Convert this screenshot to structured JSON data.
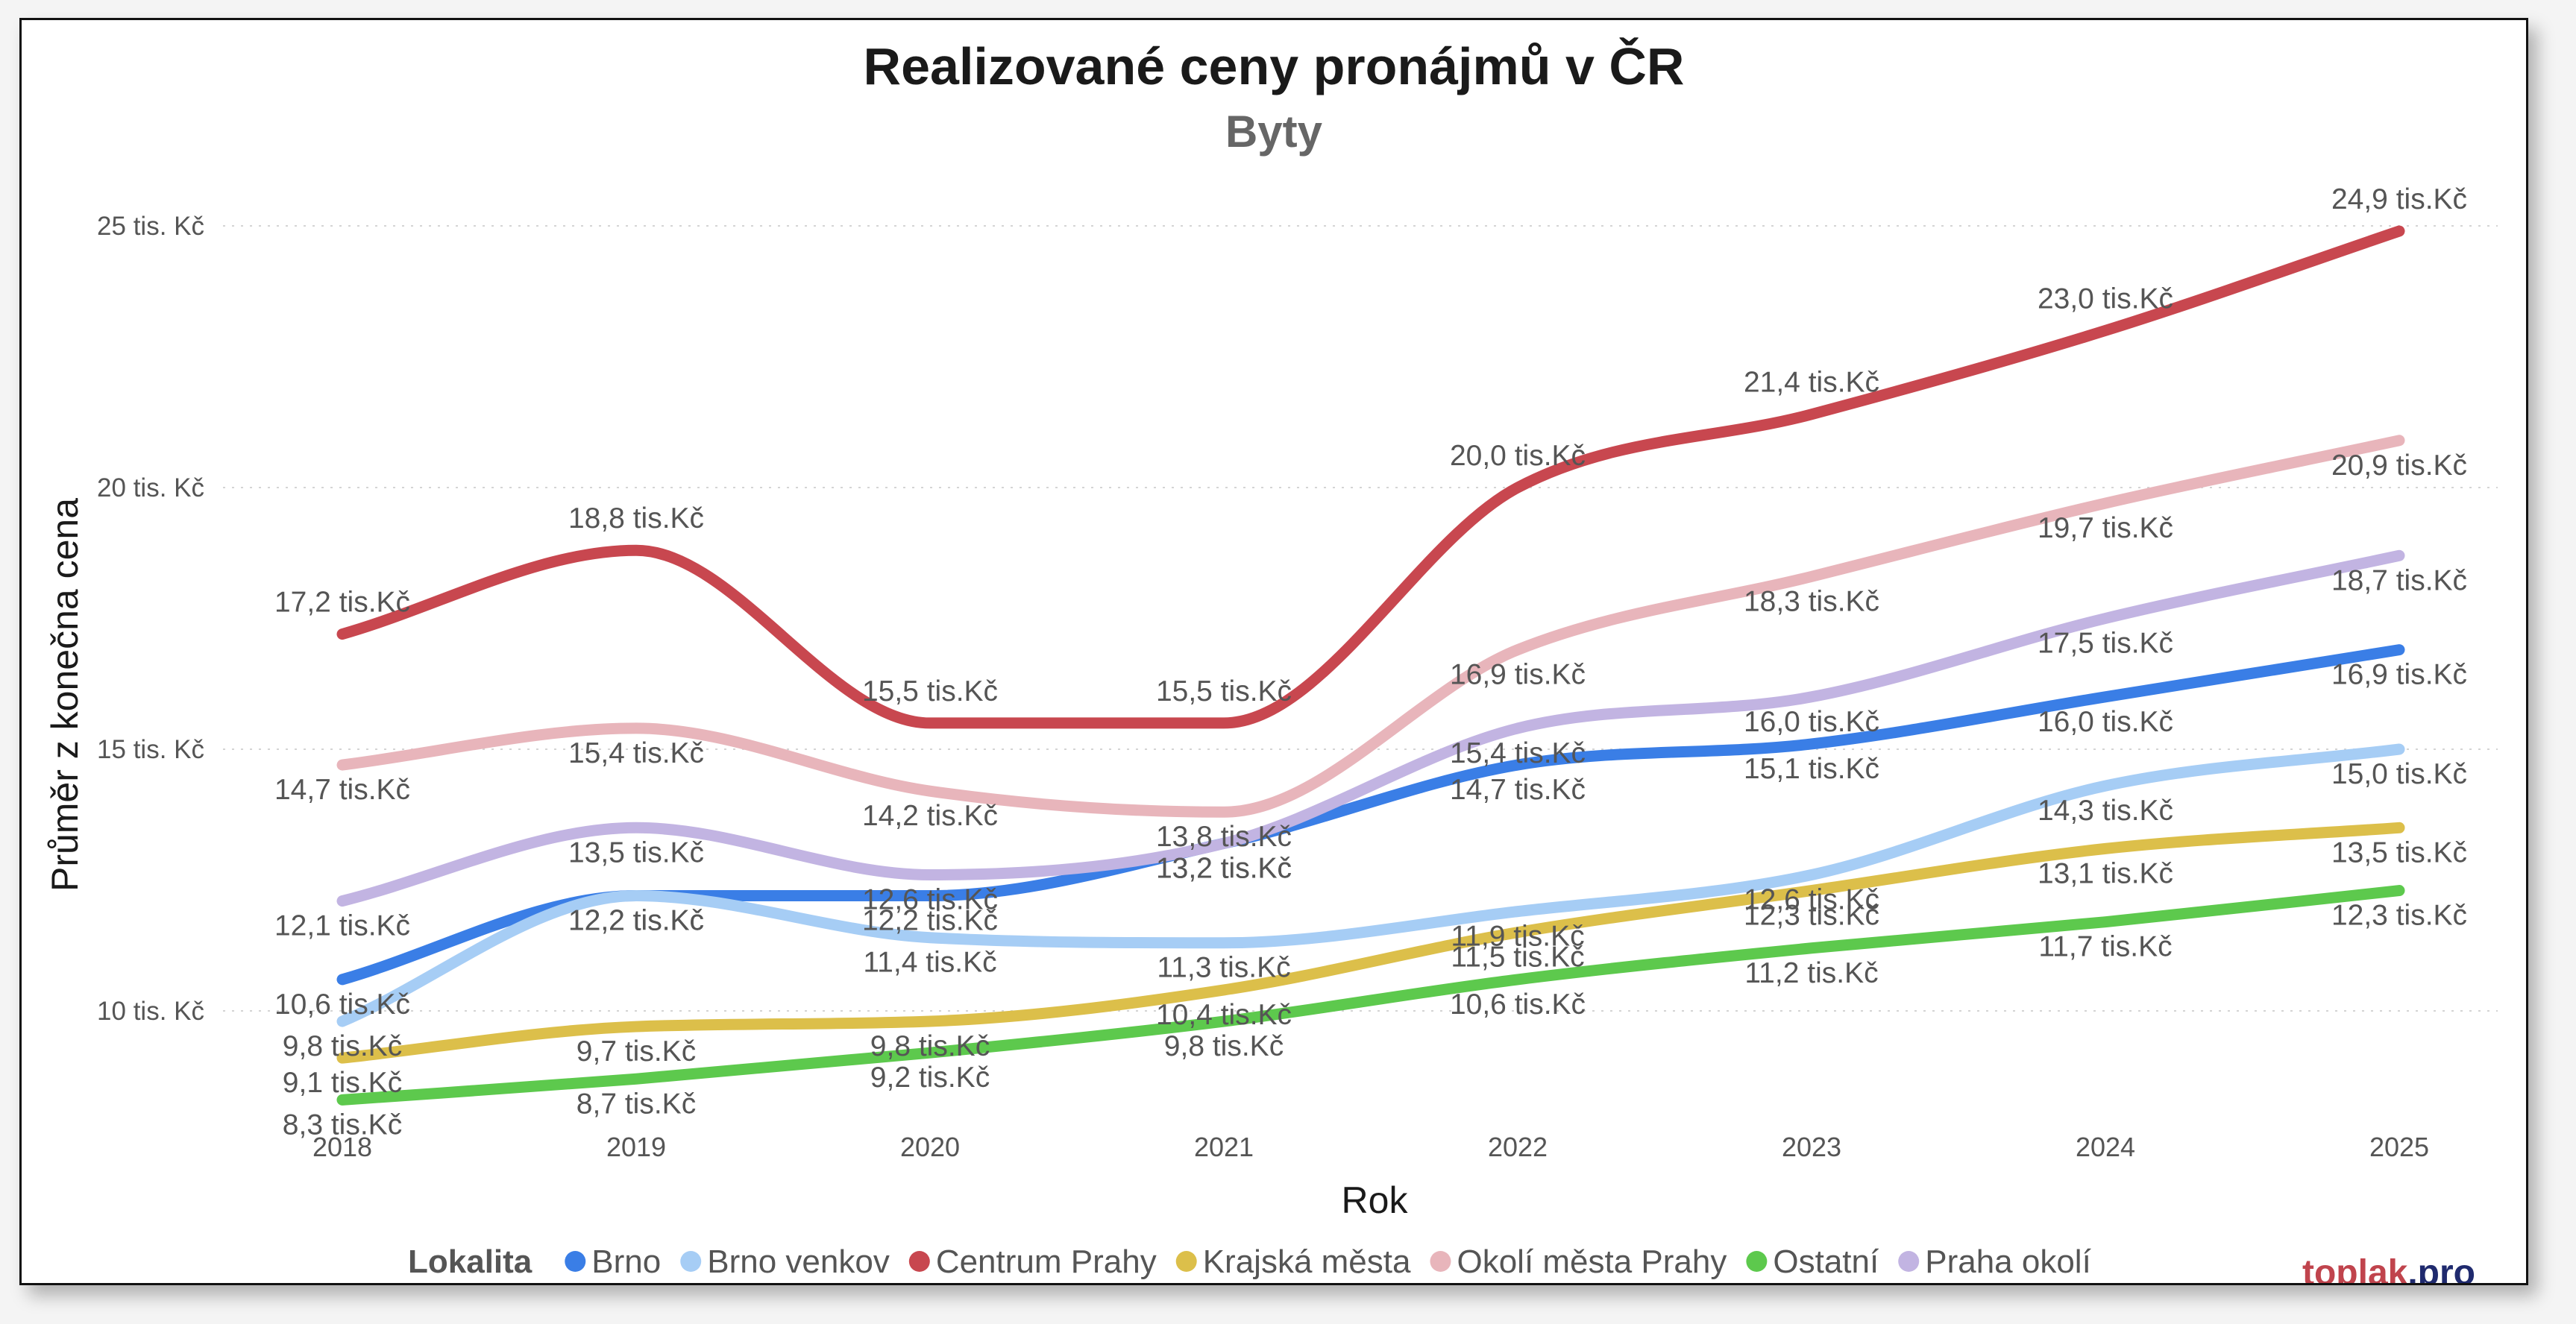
{
  "brand": {
    "part1": "toplak",
    "part2": ".pro",
    "color1": "#c0444d",
    "color2": "#1f2a6e"
  },
  "chart_data": {
    "type": "line",
    "title": "Realizované ceny pronájmů v ČR",
    "subtitle": "Byty",
    "xlabel": "Rok",
    "ylabel": "Průměr z konečna cena",
    "x": [
      "2018",
      "2019",
      "2020",
      "2021",
      "2022",
      "2023",
      "2024",
      "2025"
    ],
    "ylim": [
      7.4,
      26.5
    ],
    "yticks": [
      {
        "value": 10,
        "label": "10 tis. Kč"
      },
      {
        "value": 15,
        "label": "15 tis. Kč"
      },
      {
        "value": 20,
        "label": "20 tis. Kč"
      },
      {
        "value": 25,
        "label": "25 tis. Kč"
      }
    ],
    "grid": true,
    "data_label_suffix": " tis.Kč",
    "legend_title": "Lokalita",
    "legend_position": "bottom",
    "series": [
      {
        "name": "Brno",
        "color": "#3a7ee6",
        "values": [
          10.6,
          12.2,
          12.2,
          13.2,
          14.7,
          15.1,
          16.0,
          16.9
        ]
      },
      {
        "name": "Brno venkov",
        "color": "#a6cdf5",
        "values": [
          9.8,
          12.2,
          11.4,
          11.3,
          11.9,
          12.6,
          14.3,
          15.0
        ]
      },
      {
        "name": "Centrum Prahy",
        "color": "#c8474f",
        "values": [
          17.2,
          18.8,
          15.5,
          15.5,
          20.0,
          21.4,
          23.0,
          24.9
        ]
      },
      {
        "name": "Krajská města",
        "color": "#dcbf4a",
        "values": [
          9.1,
          9.7,
          9.8,
          10.4,
          11.5,
          12.3,
          13.1,
          13.5
        ]
      },
      {
        "name": "Okolí města Prahy",
        "color": "#e8b5bb",
        "values": [
          14.7,
          15.4,
          14.2,
          13.8,
          16.9,
          18.3,
          19.7,
          20.9
        ]
      },
      {
        "name": "Ostatní",
        "color": "#5dc94d",
        "values": [
          8.3,
          8.7,
          9.2,
          9.8,
          10.6,
          11.2,
          11.7,
          12.3
        ]
      },
      {
        "name": "Praha okolí",
        "color": "#c2b4e2",
        "values": [
          12.1,
          13.5,
          12.6,
          13.2,
          15.4,
          16.0,
          17.5,
          18.7
        ]
      }
    ]
  }
}
